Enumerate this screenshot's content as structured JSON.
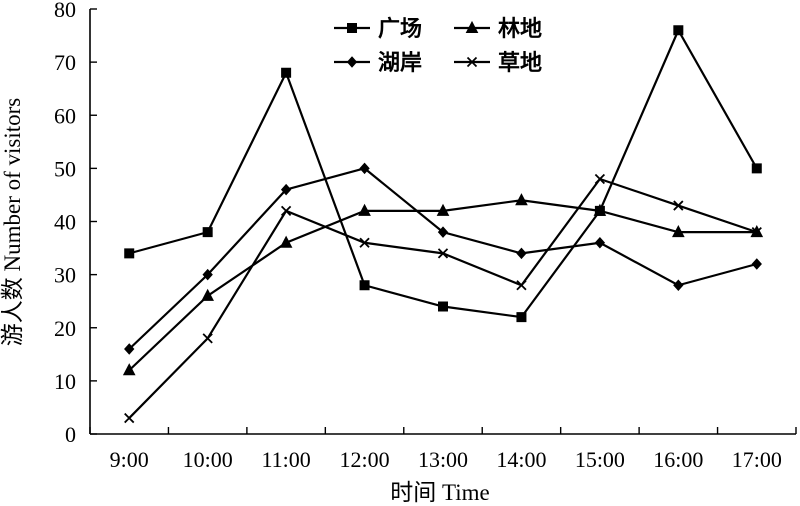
{
  "chart_data": {
    "type": "line",
    "categories": [
      "9:00",
      "10:00",
      "11:00",
      "12:00",
      "13:00",
      "14:00",
      "15:00",
      "16:00",
      "17:00"
    ],
    "ylabel": "游人数 Number of visitors",
    "xlabel": "时间 Time",
    "ylim": [
      0,
      80
    ],
    "yticks": [
      0,
      10,
      20,
      30,
      40,
      50,
      60,
      70,
      80
    ],
    "grid": false,
    "legend_position": "top-center",
    "series": [
      {
        "name": "广场",
        "marker": "square",
        "values": [
          34,
          38,
          68,
          28,
          24,
          22,
          42,
          76,
          50
        ]
      },
      {
        "name": "林地",
        "marker": "triangle",
        "values": [
          12,
          26,
          36,
          42,
          42,
          44,
          42,
          38,
          38
        ]
      },
      {
        "name": "湖岸",
        "marker": "diamond",
        "values": [
          16,
          30,
          46,
          50,
          38,
          34,
          36,
          28,
          32
        ]
      },
      {
        "name": "草地",
        "marker": "x",
        "values": [
          3,
          18,
          42,
          36,
          34,
          28,
          48,
          43,
          38
        ]
      }
    ]
  }
}
